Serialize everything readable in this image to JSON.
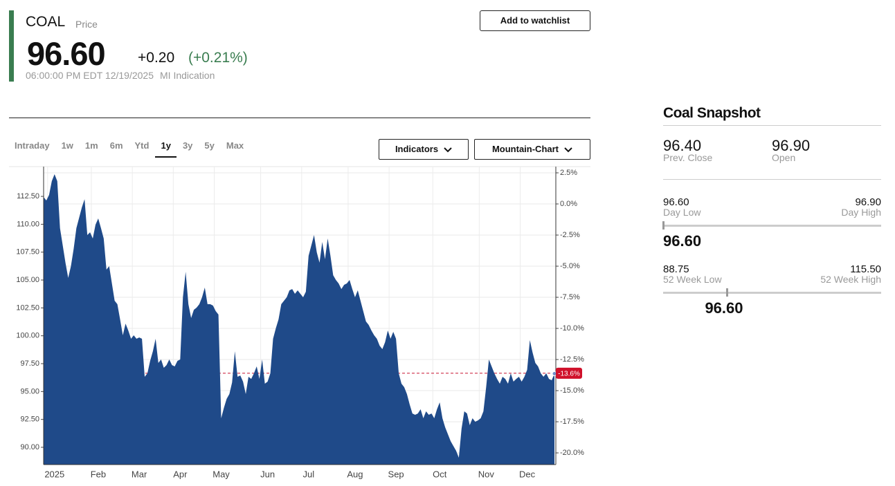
{
  "header": {
    "ticker": "COAL",
    "price_label": "Price",
    "price": "96.60",
    "change": "+0.20",
    "change_pct": "(+0.21%)",
    "timestamp": "06:00:00 PM EDT 12/19/2025",
    "source": "MI Indication",
    "watchlist_button": "Add to watchlist"
  },
  "tabs": [
    "Intraday",
    "1w",
    "1m",
    "6m",
    "Ytd",
    "1y",
    "3y",
    "5y",
    "Max"
  ],
  "active_tab": 5,
  "buttons": [
    "Indicators",
    "Mountain-Chart"
  ],
  "chart_data": {
    "type": "area",
    "color": "#1f4a89",
    "categories": [
      null,
      null,
      null,
      null,
      "2025",
      null,
      null,
      null,
      null,
      null,
      null,
      null,
      null,
      null,
      null,
      null,
      null,
      null,
      null,
      null,
      "Feb",
      null,
      null,
      null,
      null,
      null,
      null,
      null,
      null,
      null,
      null,
      null,
      null,
      null,
      null,
      "Mar",
      null,
      null,
      null,
      null,
      null,
      null,
      null,
      null,
      null,
      null,
      null,
      null,
      null,
      null,
      "Apr",
      null,
      null,
      null,
      null,
      null,
      null,
      null,
      null,
      null,
      null,
      null,
      null,
      null,
      null,
      "May",
      null,
      null,
      null,
      null,
      null,
      null,
      null,
      null,
      null,
      null,
      null,
      null,
      null,
      null,
      null,
      null,
      "Jun",
      null,
      null,
      null,
      null,
      null,
      null,
      null,
      null,
      null,
      null,
      null,
      null,
      null,
      null,
      "Jul",
      null,
      null,
      null,
      null,
      null,
      null,
      null,
      null,
      null,
      null,
      null,
      null,
      null,
      null,
      null,
      null,
      "Aug",
      null,
      null,
      null,
      null,
      null,
      null,
      null,
      null,
      null,
      null,
      null,
      null,
      null,
      null,
      "Sep",
      null,
      null,
      null,
      null,
      null,
      null,
      null,
      null,
      null,
      null,
      null,
      null,
      null,
      null,
      null,
      "Oct",
      null,
      null,
      null,
      null,
      null,
      null,
      null,
      null,
      null,
      null,
      null,
      null,
      null,
      null,
      null,
      null,
      "Nov",
      null,
      null,
      null,
      null,
      null,
      null,
      null,
      null,
      null,
      null,
      null,
      null,
      null,
      null,
      "Dec",
      null,
      null,
      null,
      null,
      null,
      null,
      null,
      null,
      null,
      null
    ],
    "values": [
      112.44,
      112.13,
      112.63,
      113.87,
      114.49,
      113.87,
      109.65,
      108.1,
      106.55,
      105.19,
      106.24,
      107.79,
      109.65,
      110.58,
      111.51,
      112.25,
      109.03,
      109.28,
      108.72,
      109.96,
      110.52,
      109.65,
      108.72,
      105.93,
      106.24,
      104.69,
      103.14,
      102.83,
      101.47,
      100.04,
      101.09,
      100.47,
      99.73,
      100.04,
      99.73,
      99.85,
      99.73,
      96.32,
      96.63,
      97.75,
      98.61,
      99.73,
      97.56,
      97.87,
      97.13,
      97.37,
      97.87,
      97.37,
      97.25,
      97.75,
      97.87,
      103.45,
      105.74,
      102.83,
      101.59,
      102.33,
      102.52,
      102.83,
      103.45,
      104.32,
      102.83,
      102.83,
      102.71,
      102.21,
      101.9,
      92.6,
      93.53,
      94.34,
      94.77,
      95.82,
      98.61,
      96.32,
      96.44,
      95.89,
      94.77,
      96.32,
      96.13,
      96.63,
      97.25,
      96.13,
      97.87,
      95.7,
      95.89,
      96.63,
      99.73,
      100.66,
      101.47,
      102.83,
      103.14,
      103.45,
      104.07,
      104.19,
      103.76,
      104.07,
      103.76,
      103.45,
      103.95,
      107.17,
      108.1,
      109.03,
      107.48,
      106.55,
      108.41,
      106.86,
      108.72,
      107.17,
      105.43,
      105.0,
      104.69,
      104.19,
      104.57,
      104.69,
      105.0,
      104.19,
      103.45,
      104.07,
      103.14,
      102.21,
      101.28,
      100.97,
      100.47,
      100.04,
      99.73,
      99.11,
      98.8,
      99.42,
      100.47,
      99.73,
      100.35,
      99.73,
      96.63,
      95.7,
      95.39,
      94.77,
      93.84,
      93.03,
      92.91,
      93.03,
      93.41,
      92.6,
      93.22,
      92.91,
      93.03,
      92.6,
      93.41,
      94.03,
      92.6,
      91.79,
      91.17,
      90.55,
      90.12,
      89.69,
      89.07,
      91.67,
      93.22,
      93.03,
      91.98,
      92.6,
      92.29,
      92.41,
      92.6,
      93.22,
      95.39,
      97.87,
      97.25,
      96.63,
      96.13,
      95.7,
      96.32,
      96.13,
      95.7,
      96.63,
      95.89,
      96.13,
      96.32,
      95.89,
      96.32,
      96.94,
      99.61,
      98.49,
      97.56,
      97.25,
      96.63,
      96.32,
      96.63,
      96.13,
      96.01,
      96.6
    ],
    "ylim": [
      88.45,
      115.17
    ],
    "yticks": [
      {
        "value": 90,
        "label": "90.00"
      },
      {
        "value": 92.5,
        "label": "92.50"
      },
      {
        "value": 95,
        "label": "95.00"
      },
      {
        "value": 97.5,
        "label": "97.50"
      },
      {
        "value": 100,
        "label": "100.00"
      },
      {
        "value": 102.5,
        "label": "102.50"
      },
      {
        "value": 105,
        "label": "105.00"
      },
      {
        "value": 107.5,
        "label": "107.50"
      },
      {
        "value": 110,
        "label": "110.00"
      },
      {
        "value": 112.5,
        "label": "112.50"
      }
    ],
    "y2lim": [
      -20.94,
      3.0
    ],
    "y2ticks": [
      {
        "value": 2.5,
        "label": "2.5%"
      },
      {
        "value": 0,
        "label": "0.0%"
      },
      {
        "value": -2.5,
        "label": "-2.5%"
      },
      {
        "value": -5,
        "label": "-5.0%"
      },
      {
        "value": -7.5,
        "label": "-7.5%"
      },
      {
        "value": -10,
        "label": "-10.0%"
      },
      {
        "value": -12.5,
        "label": "-12.5%"
      },
      {
        "value": -15,
        "label": "-15.0%"
      },
      {
        "value": -17.5,
        "label": "-17.5%"
      },
      {
        "value": -20,
        "label": "-20.0%"
      }
    ],
    "current_change": {
      "value": -13.6,
      "label": "-13.6%"
    },
    "grid": true
  },
  "snapshot": {
    "title": "Coal Snapshot",
    "stats": [
      {
        "value": "96.40",
        "label": "Prev. Close"
      },
      {
        "value": "96.90",
        "label": "Open"
      }
    ],
    "ranges": [
      {
        "low": "96.60",
        "low_label": "Day Low",
        "high": "96.90",
        "high_label": "Day High",
        "current": "96.60"
      },
      {
        "low": "88.75",
        "low_label": "52 Week Low",
        "high": "115.50",
        "high_label": "52 Week High",
        "current": "96.60"
      }
    ]
  }
}
